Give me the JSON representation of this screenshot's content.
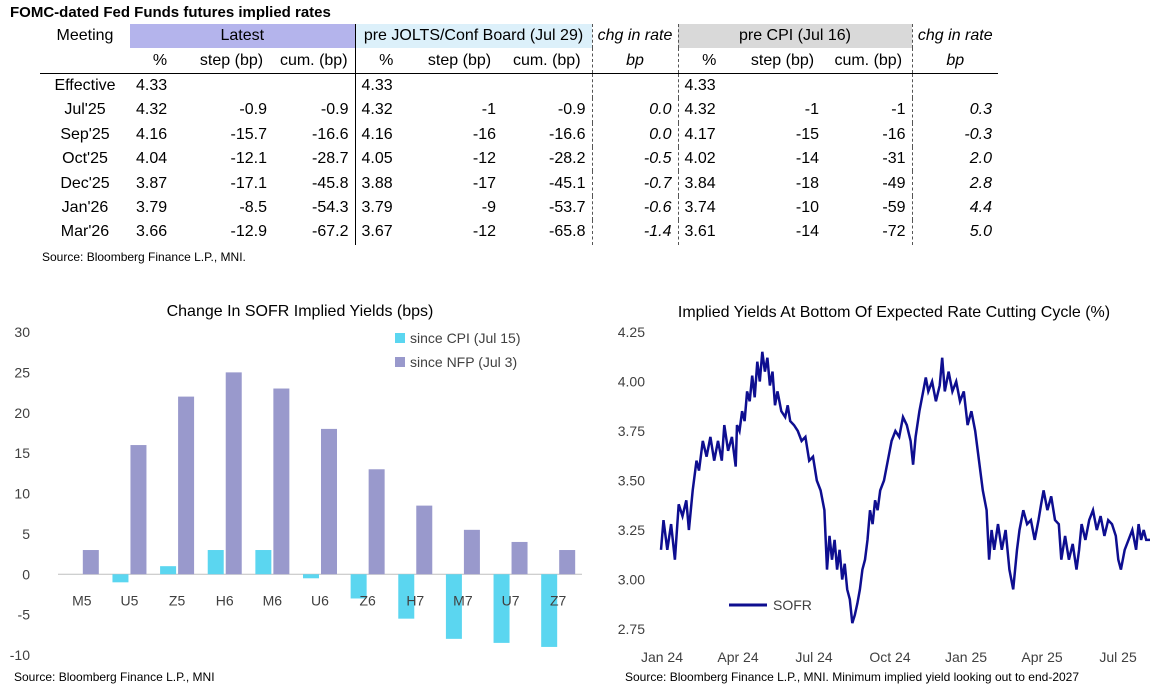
{
  "table": {
    "title": "FOMC-dated Fed Funds futures implied rates",
    "headers": {
      "meeting": "Meeting",
      "latest": "Latest",
      "pre_jolts": "pre JOLTS/Conf Board (Jul 29)",
      "chg1": "chg in rate",
      "pre_cpi": "pre CPI (Jul 16)",
      "chg2": "chg in rate"
    },
    "subheaders": {
      "pct": "%",
      "step": "step (bp)",
      "cum": "cum. (bp)",
      "bp": "bp"
    },
    "rows": [
      {
        "meeting": "Effective",
        "l_pct": "4.33",
        "l_step": "",
        "l_cum": "",
        "j_pct": "4.33",
        "j_step": "",
        "j_cum": "",
        "chg1": "",
        "c_pct": "4.33",
        "c_step": "",
        "c_cum": "",
        "chg2": ""
      },
      {
        "meeting": "Jul'25",
        "l_pct": "4.32",
        "l_step": "-0.9",
        "l_cum": "-0.9",
        "j_pct": "4.32",
        "j_step": "-1",
        "j_cum": "-0.9",
        "chg1": "0.0",
        "c_pct": "4.32",
        "c_step": "-1",
        "c_cum": "-1",
        "chg2": "0.3"
      },
      {
        "meeting": "Sep'25",
        "l_pct": "4.16",
        "l_step": "-15.7",
        "l_cum": "-16.6",
        "j_pct": "4.16",
        "j_step": "-16",
        "j_cum": "-16.6",
        "chg1": "0.0",
        "c_pct": "4.17",
        "c_step": "-15",
        "c_cum": "-16",
        "chg2": "-0.3"
      },
      {
        "meeting": "Oct'25",
        "l_pct": "4.04",
        "l_step": "-12.1",
        "l_cum": "-28.7",
        "j_pct": "4.05",
        "j_step": "-12",
        "j_cum": "-28.2",
        "chg1": "-0.5",
        "c_pct": "4.02",
        "c_step": "-14",
        "c_cum": "-31",
        "chg2": "2.0"
      },
      {
        "meeting": "Dec'25",
        "l_pct": "3.87",
        "l_step": "-17.1",
        "l_cum": "-45.8",
        "j_pct": "3.88",
        "j_step": "-17",
        "j_cum": "-45.1",
        "chg1": "-0.7",
        "c_pct": "3.84",
        "c_step": "-18",
        "c_cum": "-49",
        "chg2": "2.8"
      },
      {
        "meeting": "Jan'26",
        "l_pct": "3.79",
        "l_step": "-8.5",
        "l_cum": "-54.3",
        "j_pct": "3.79",
        "j_step": "-9",
        "j_cum": "-53.7",
        "chg1": "-0.6",
        "c_pct": "3.74",
        "c_step": "-10",
        "c_cum": "-59",
        "chg2": "4.4"
      },
      {
        "meeting": "Mar'26",
        "l_pct": "3.66",
        "l_step": "-12.9",
        "l_cum": "-67.2",
        "j_pct": "3.67",
        "j_step": "-12",
        "j_cum": "-65.8",
        "chg1": "-1.4",
        "c_pct": "3.61",
        "c_step": "-14",
        "c_cum": "-72",
        "chg2": "5.0"
      }
    ],
    "source": "Source: Bloomberg Finance L.P., MNI."
  },
  "chart_data": [
    {
      "type": "bar",
      "title": "Change In SOFR Implied Yields (bps)",
      "categories": [
        "M5",
        "U5",
        "Z5",
        "H6",
        "M6",
        "U6",
        "Z6",
        "H7",
        "M7",
        "U7",
        "Z7"
      ],
      "series": [
        {
          "name": "since CPI (Jul 15)",
          "color": "#5bd6f0",
          "values": [
            0,
            -1,
            1,
            3,
            3,
            -0.5,
            -3,
            -5.5,
            -8,
            -8.5,
            -9
          ]
        },
        {
          "name": "since NFP (Jul 3)",
          "color": "#9999cc",
          "values": [
            3,
            16,
            22,
            25,
            23,
            18,
            13,
            8.5,
            5.5,
            4,
            3
          ]
        }
      ],
      "ylim": [
        -10,
        30
      ],
      "yticks": [
        "30",
        "25",
        "20",
        "15",
        "10",
        "5",
        "0",
        "-5",
        "-10"
      ],
      "legend": "top-right",
      "source": "Source: Bloomberg Finance L.P., MNI"
    },
    {
      "type": "line",
      "title": "Implied Yields At Bottom Of Expected Rate Cutting Cycle (%)",
      "xticks": [
        "Jan 24",
        "Apr 24",
        "Jul 24",
        "Oct 24",
        "Jan 25",
        "Apr 25",
        "Jul 25"
      ],
      "yticks": [
        "4.25",
        "4.00",
        "3.75",
        "3.50",
        "3.25",
        "3.00",
        "2.75"
      ],
      "ylim": [
        2.75,
        4.25
      ],
      "x_range_months": [
        0,
        19.3
      ],
      "legend": "bottom-left",
      "series": [
        {
          "name": "SOFR",
          "color": "#0e0e90",
          "points": [
            [
              0,
              3.15
            ],
            [
              0.1,
              3.3
            ],
            [
              0.25,
              3.15
            ],
            [
              0.4,
              3.28
            ],
            [
              0.55,
              3.1
            ],
            [
              0.7,
              3.38
            ],
            [
              0.85,
              3.32
            ],
            [
              1.0,
              3.4
            ],
            [
              1.1,
              3.25
            ],
            [
              1.25,
              3.45
            ],
            [
              1.4,
              3.6
            ],
            [
              1.5,
              3.55
            ],
            [
              1.65,
              3.7
            ],
            [
              1.8,
              3.62
            ],
            [
              1.95,
              3.72
            ],
            [
              2.1,
              3.6
            ],
            [
              2.25,
              3.7
            ],
            [
              2.4,
              3.6
            ],
            [
              2.5,
              3.78
            ],
            [
              2.65,
              3.65
            ],
            [
              2.8,
              3.72
            ],
            [
              2.95,
              3.57
            ],
            [
              3.0,
              3.78
            ],
            [
              3.1,
              3.75
            ],
            [
              3.2,
              3.85
            ],
            [
              3.3,
              3.8
            ],
            [
              3.4,
              3.95
            ],
            [
              3.5,
              3.9
            ],
            [
              3.6,
              4.03
            ],
            [
              3.7,
              3.92
            ],
            [
              3.8,
              4.1
            ],
            [
              3.9,
              4.0
            ],
            [
              4.0,
              4.15
            ],
            [
              4.1,
              4.05
            ],
            [
              4.2,
              4.12
            ],
            [
              4.3,
              3.98
            ],
            [
              4.4,
              4.05
            ],
            [
              4.5,
              3.88
            ],
            [
              4.6,
              3.95
            ],
            [
              4.75,
              3.85
            ],
            [
              4.9,
              3.82
            ],
            [
              5.0,
              3.88
            ],
            [
              5.1,
              3.8
            ],
            [
              5.25,
              3.78
            ],
            [
              5.4,
              3.75
            ],
            [
              5.55,
              3.7
            ],
            [
              5.7,
              3.72
            ],
            [
              5.85,
              3.6
            ],
            [
              6.0,
              3.62
            ],
            [
              6.15,
              3.5
            ],
            [
              6.3,
              3.45
            ],
            [
              6.45,
              3.35
            ],
            [
              6.55,
              3.05
            ],
            [
              6.65,
              3.22
            ],
            [
              6.75,
              3.1
            ],
            [
              6.85,
              3.2
            ],
            [
              6.95,
              3.05
            ],
            [
              7.05,
              3.15
            ],
            [
              7.15,
              3.0
            ],
            [
              7.25,
              3.08
            ],
            [
              7.35,
              2.95
            ],
            [
              7.45,
              2.9
            ],
            [
              7.55,
              2.78
            ],
            [
              7.65,
              2.82
            ],
            [
              7.75,
              2.88
            ],
            [
              7.85,
              2.95
            ],
            [
              7.95,
              3.05
            ],
            [
              8.05,
              3.1
            ],
            [
              8.15,
              3.2
            ],
            [
              8.25,
              3.35
            ],
            [
              8.35,
              3.28
            ],
            [
              8.45,
              3.4
            ],
            [
              8.55,
              3.35
            ],
            [
              8.65,
              3.45
            ],
            [
              8.8,
              3.5
            ],
            [
              8.95,
              3.6
            ],
            [
              9.1,
              3.7
            ],
            [
              9.25,
              3.75
            ],
            [
              9.4,
              3.72
            ],
            [
              9.55,
              3.82
            ],
            [
              9.7,
              3.78
            ],
            [
              9.85,
              3.7
            ],
            [
              9.95,
              3.58
            ],
            [
              10.05,
              3.72
            ],
            [
              10.2,
              3.85
            ],
            [
              10.35,
              3.95
            ],
            [
              10.45,
              4.02
            ],
            [
              10.55,
              3.95
            ],
            [
              10.7,
              4.0
            ],
            [
              10.85,
              3.9
            ],
            [
              11.0,
              3.98
            ],
            [
              11.1,
              4.12
            ],
            [
              11.2,
              3.95
            ],
            [
              11.35,
              4.05
            ],
            [
              11.5,
              3.95
            ],
            [
              11.65,
              4.0
            ],
            [
              11.8,
              3.9
            ],
            [
              11.95,
              3.95
            ],
            [
              12.1,
              3.78
            ],
            [
              12.25,
              3.85
            ],
            [
              12.4,
              3.75
            ],
            [
              12.55,
              3.6
            ],
            [
              12.7,
              3.45
            ],
            [
              12.85,
              3.35
            ],
            [
              12.95,
              3.1
            ],
            [
              13.05,
              3.25
            ],
            [
              13.15,
              3.15
            ],
            [
              13.3,
              3.28
            ],
            [
              13.45,
              3.15
            ],
            [
              13.6,
              3.25
            ],
            [
              13.75,
              3.05
            ],
            [
              13.9,
              2.95
            ],
            [
              14.05,
              3.15
            ],
            [
              14.15,
              3.25
            ],
            [
              14.3,
              3.35
            ],
            [
              14.45,
              3.28
            ],
            [
              14.6,
              3.3
            ],
            [
              14.75,
              3.2
            ],
            [
              14.9,
              3.3
            ],
            [
              15.0,
              3.38
            ],
            [
              15.1,
              3.45
            ],
            [
              15.25,
              3.35
            ],
            [
              15.4,
              3.42
            ],
            [
              15.55,
              3.3
            ],
            [
              15.7,
              3.28
            ],
            [
              15.8,
              3.1
            ],
            [
              15.95,
              3.22
            ],
            [
              16.1,
              3.1
            ],
            [
              16.25,
              3.18
            ],
            [
              16.4,
              3.05
            ],
            [
              16.5,
              3.15
            ],
            [
              16.6,
              3.28
            ],
            [
              16.75,
              3.2
            ],
            [
              16.9,
              3.3
            ],
            [
              17.05,
              3.35
            ],
            [
              17.2,
              3.25
            ],
            [
              17.35,
              3.32
            ],
            [
              17.5,
              3.22
            ],
            [
              17.65,
              3.3
            ],
            [
              17.8,
              3.28
            ],
            [
              17.95,
              3.22
            ],
            [
              18.05,
              3.1
            ],
            [
              18.15,
              3.05
            ],
            [
              18.3,
              3.15
            ],
            [
              18.45,
              3.2
            ],
            [
              18.6,
              3.25
            ],
            [
              18.75,
              3.15
            ],
            [
              18.85,
              3.28
            ],
            [
              18.95,
              3.2
            ],
            [
              19.05,
              3.25
            ],
            [
              19.15,
              3.2
            ],
            [
              19.3,
              3.2
            ]
          ]
        }
      ],
      "source": "Source: Bloomberg Finance L.P., MNI. Minimum implied yield looking out to end-2027"
    }
  ]
}
